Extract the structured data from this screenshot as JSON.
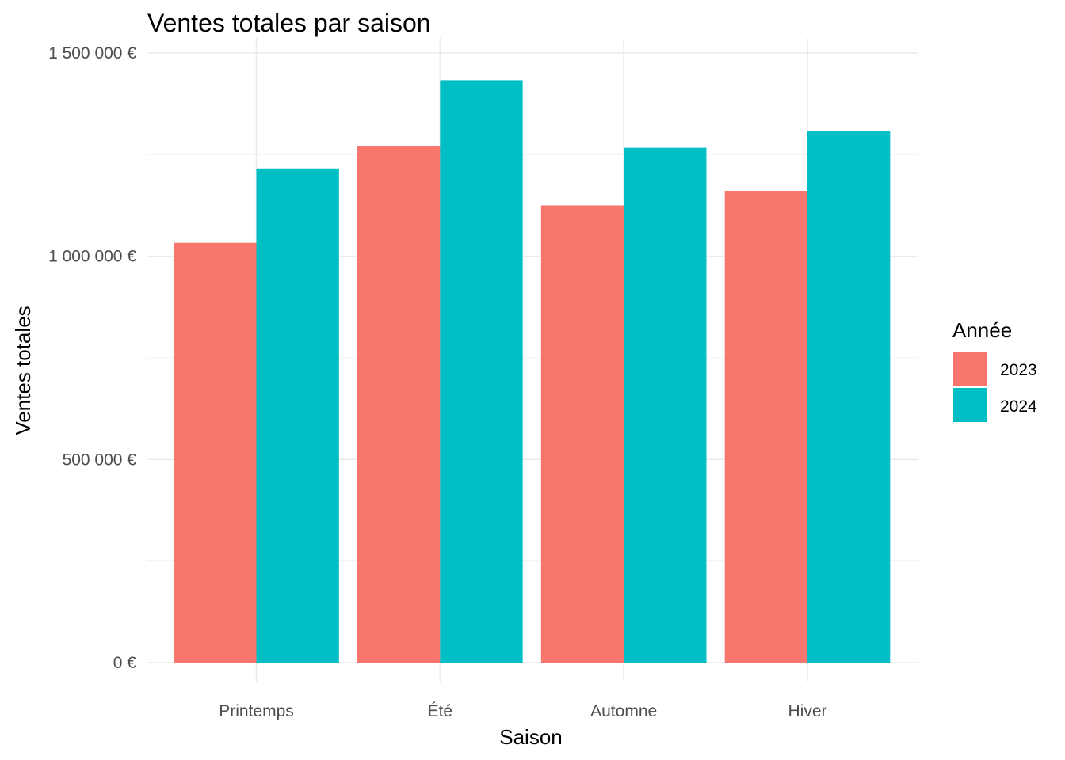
{
  "chart_data": {
    "type": "bar",
    "title": "Ventes totales par saison",
    "xlabel": "Saison",
    "ylabel": "Ventes totales",
    "categories": [
      "Printemps",
      "Été",
      "Automne",
      "Hiver"
    ],
    "series": [
      {
        "name": "2023",
        "color": "#F8766D",
        "values": [
          1033000,
          1271000,
          1125000,
          1161000
        ]
      },
      {
        "name": "2024",
        "color": "#00BFC4",
        "values": [
          1216000,
          1433000,
          1267000,
          1307000
        ]
      }
    ],
    "ylim": [
      0,
      1500000
    ],
    "yticks": [
      0,
      500000,
      1000000,
      1500000
    ],
    "ytick_labels": [
      "0 €",
      "500 000 €",
      "1 000 000 €",
      "1 500 000 €"
    ],
    "grid": true,
    "legend": {
      "title": "Année",
      "position": "right"
    }
  }
}
